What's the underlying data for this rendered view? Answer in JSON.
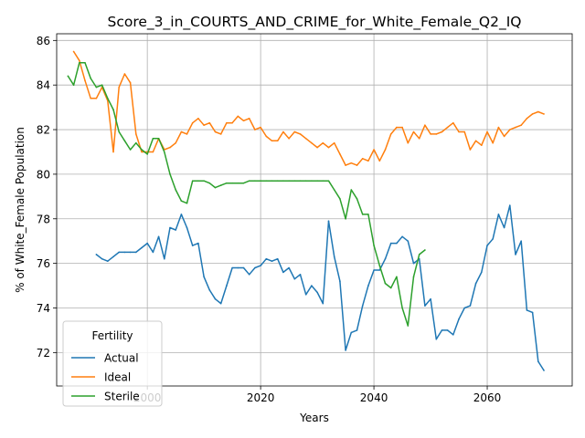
{
  "chart_data": {
    "type": "line",
    "title": "Score_3_in_COURTS_AND_CRIME_for_White_Female_Q2_IQ",
    "xlabel": "Years",
    "ylabel": "% of White_Female Population",
    "xlim": [
      1984,
      2075
    ],
    "ylim": [
      70.5,
      86.3
    ],
    "xticks": [
      2000,
      2020,
      2040,
      2060
    ],
    "yticks": [
      72,
      74,
      76,
      78,
      80,
      82,
      84,
      86
    ],
    "grid": true,
    "legend": {
      "title": "Fertility",
      "position": "lower-left"
    },
    "series": [
      {
        "name": "Actual",
        "color": "#1f77b4",
        "x": [
          1991,
          1992,
          1993,
          1994,
          1995,
          1996,
          1997,
          1998,
          1999,
          2000,
          2001,
          2002,
          2003,
          2004,
          2005,
          2006,
          2007,
          2008,
          2009,
          2010,
          2011,
          2012,
          2013,
          2014,
          2015,
          2016,
          2017,
          2018,
          2019,
          2020,
          2021,
          2022,
          2023,
          2024,
          2025,
          2026,
          2027,
          2028,
          2029,
          2030,
          2031,
          2032,
          2033,
          2034,
          2035,
          2036,
          2037,
          2038,
          2039,
          2040,
          2041,
          2042,
          2043,
          2044,
          2045,
          2046,
          2047,
          2048,
          2049,
          2050,
          2051,
          2052,
          2053,
          2054,
          2055,
          2056,
          2057,
          2058,
          2059,
          2060,
          2061,
          2062,
          2063,
          2064,
          2065,
          2066,
          2067,
          2068,
          2069,
          2070
        ],
        "y": [
          76.4,
          76.2,
          76.1,
          76.3,
          76.5,
          76.5,
          76.5,
          76.5,
          76.7,
          76.9,
          76.5,
          77.2,
          76.2,
          77.6,
          77.5,
          78.2,
          77.6,
          76.8,
          76.9,
          75.4,
          74.8,
          74.4,
          74.2,
          75.0,
          75.8,
          75.8,
          75.8,
          75.5,
          75.8,
          75.9,
          76.2,
          76.1,
          76.2,
          75.6,
          75.8,
          75.3,
          75.5,
          74.6,
          75.0,
          74.7,
          74.2,
          77.9,
          76.3,
          75.2,
          72.1,
          72.9,
          73.0,
          74.1,
          75.0,
          75.7,
          75.7,
          76.2,
          76.9,
          76.9,
          77.2,
          77.0,
          76.0,
          76.2,
          74.1,
          74.4,
          72.6,
          73.0,
          73.0,
          72.8,
          73.5,
          74.0,
          74.1,
          75.1,
          75.6,
          76.8,
          77.1,
          78.2,
          77.6,
          78.6,
          76.4,
          77.0,
          73.9,
          73.8,
          71.6,
          71.2
        ]
      },
      {
        "name": "Ideal",
        "color": "#ff7f0e",
        "x": [
          1987,
          1988,
          1989,
          1990,
          1991,
          1992,
          1993,
          1994,
          1995,
          1996,
          1997,
          1998,
          1999,
          2000,
          2001,
          2002,
          2003,
          2004,
          2005,
          2006,
          2007,
          2008,
          2009,
          2010,
          2011,
          2012,
          2013,
          2014,
          2015,
          2016,
          2017,
          2018,
          2019,
          2020,
          2021,
          2022,
          2023,
          2024,
          2025,
          2026,
          2027,
          2028,
          2029,
          2030,
          2031,
          2032,
          2033,
          2034,
          2035,
          2036,
          2037,
          2038,
          2039,
          2040,
          2041,
          2042,
          2043,
          2044,
          2045,
          2046,
          2047,
          2048,
          2049,
          2050,
          2051,
          2052,
          2053,
          2054,
          2055,
          2056,
          2057,
          2058,
          2059,
          2060,
          2061,
          2062,
          2063,
          2064,
          2065,
          2066,
          2067,
          2068,
          2069,
          2070
        ],
        "y": [
          85.5,
          85.1,
          84.2,
          83.4,
          83.4,
          83.9,
          83.3,
          81.0,
          83.9,
          84.5,
          84.1,
          81.8,
          81.0,
          81.0,
          81.0,
          81.6,
          81.1,
          81.2,
          81.4,
          81.9,
          81.8,
          82.3,
          82.5,
          82.2,
          82.3,
          81.9,
          81.8,
          82.3,
          82.3,
          82.6,
          82.4,
          82.5,
          82.0,
          82.1,
          81.7,
          81.5,
          81.5,
          81.9,
          81.6,
          81.9,
          81.8,
          81.6,
          81.4,
          81.2,
          81.4,
          81.2,
          81.4,
          80.9,
          80.4,
          80.5,
          80.4,
          80.7,
          80.6,
          81.1,
          80.6,
          81.1,
          81.8,
          82.1,
          82.1,
          81.4,
          81.9,
          81.6,
          82.2,
          81.8,
          81.8,
          81.9,
          82.1,
          82.3,
          81.9,
          81.9,
          81.1,
          81.5,
          81.3,
          81.9,
          81.4,
          82.1,
          81.7,
          82.0,
          82.1,
          82.2,
          82.5,
          82.7,
          82.8,
          82.7
        ]
      },
      {
        "name": "Sterile",
        "color": "#2ca02c",
        "x": [
          1986,
          1987,
          1988,
          1989,
          1990,
          1991,
          1992,
          1993,
          1994,
          1995,
          1996,
          1997,
          1998,
          1999,
          2000,
          2001,
          2002,
          2003,
          2004,
          2005,
          2006,
          2007,
          2008,
          2009,
          2010,
          2011,
          2012,
          2013,
          2014,
          2015,
          2016,
          2017,
          2018,
          2019,
          2020,
          2021,
          2022,
          2023,
          2024,
          2025,
          2026,
          2027,
          2028,
          2029,
          2030,
          2031,
          2032,
          2033,
          2034,
          2035,
          2036,
          2037,
          2038,
          2039,
          2040,
          2041,
          2042,
          2043,
          2044,
          2045,
          2046,
          2047,
          2048,
          2049
        ],
        "y": [
          84.4,
          84.0,
          85.0,
          85.0,
          84.3,
          83.9,
          84.0,
          83.4,
          82.9,
          81.9,
          81.5,
          81.1,
          81.4,
          81.1,
          80.9,
          81.6,
          81.6,
          81.0,
          80.0,
          79.3,
          78.8,
          78.7,
          79.7,
          79.7,
          79.7,
          79.6,
          79.4,
          79.5,
          79.6,
          79.6,
          79.6,
          79.6,
          79.7,
          79.7,
          79.7,
          79.7,
          79.7,
          79.7,
          79.7,
          79.7,
          79.7,
          79.7,
          79.7,
          79.7,
          79.7,
          79.7,
          79.7,
          79.3,
          78.9,
          78.0,
          79.3,
          78.9,
          78.2,
          78.2,
          76.8,
          75.9,
          75.1,
          74.9,
          75.4,
          74.0,
          73.2,
          75.4,
          76.4,
          76.6
        ]
      }
    ]
  }
}
